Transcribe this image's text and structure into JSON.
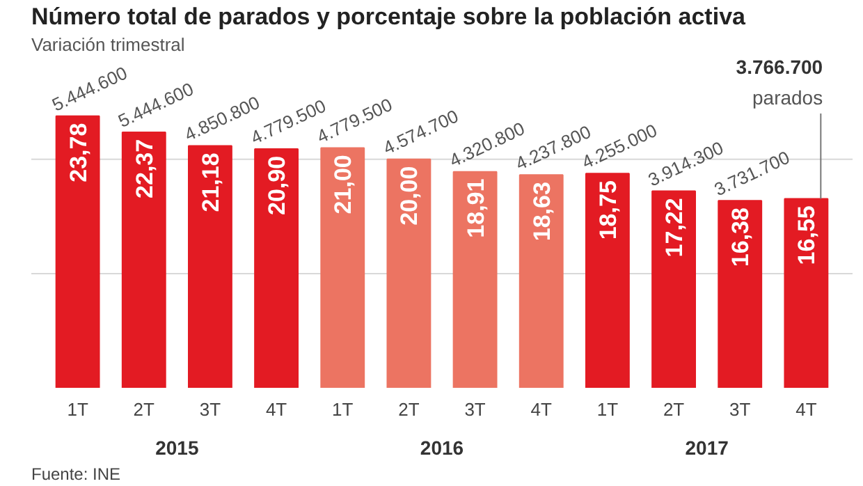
{
  "chart_data": {
    "type": "bar",
    "title": "Número total de parados y porcentaje sobre la población activa",
    "subtitle": "Variación trimestral",
    "categories": [
      "1T",
      "2T",
      "3T",
      "4T",
      "1T",
      "2T",
      "3T",
      "4T",
      "1T",
      "2T",
      "3T",
      "4T"
    ],
    "values": [
      23.78,
      22.37,
      21.18,
      20.9,
      21.0,
      20.0,
      18.91,
      18.63,
      18.75,
      17.22,
      16.38,
      16.55
    ],
    "value_labels": [
      "23,78",
      "22,37",
      "21,18",
      "20,90",
      "21,00",
      "20,00",
      "18,91",
      "18,63",
      "18,75",
      "17,22",
      "16,38",
      "16,55"
    ],
    "colors": [
      "#e31b23",
      "#e31b23",
      "#e31b23",
      "#e31b23",
      "#ec7462",
      "#ec7462",
      "#ec7462",
      "#ec7462",
      "#e31b23",
      "#e31b23",
      "#e31b23",
      "#e31b23"
    ],
    "ref_lines": [
      {
        "axis": "y",
        "value": 10,
        "color": "#d8d8d8"
      },
      {
        "axis": "y",
        "value": 20,
        "color": "#d8d8d8"
      }
    ],
    "tick_labels": "x",
    "annotations": [
      "5.444.600",
      "5.444.600",
      "4.850.800",
      "4.779.500",
      "4.779.500",
      "4.574.700",
      "4.320.800",
      "4.237.800",
      "4.255.000",
      "3.914.300",
      "3.731.700",
      "3.766.700",
      "parados",
      "2015",
      "2016",
      "2017",
      "Fuente: INE"
    ]
  }
}
